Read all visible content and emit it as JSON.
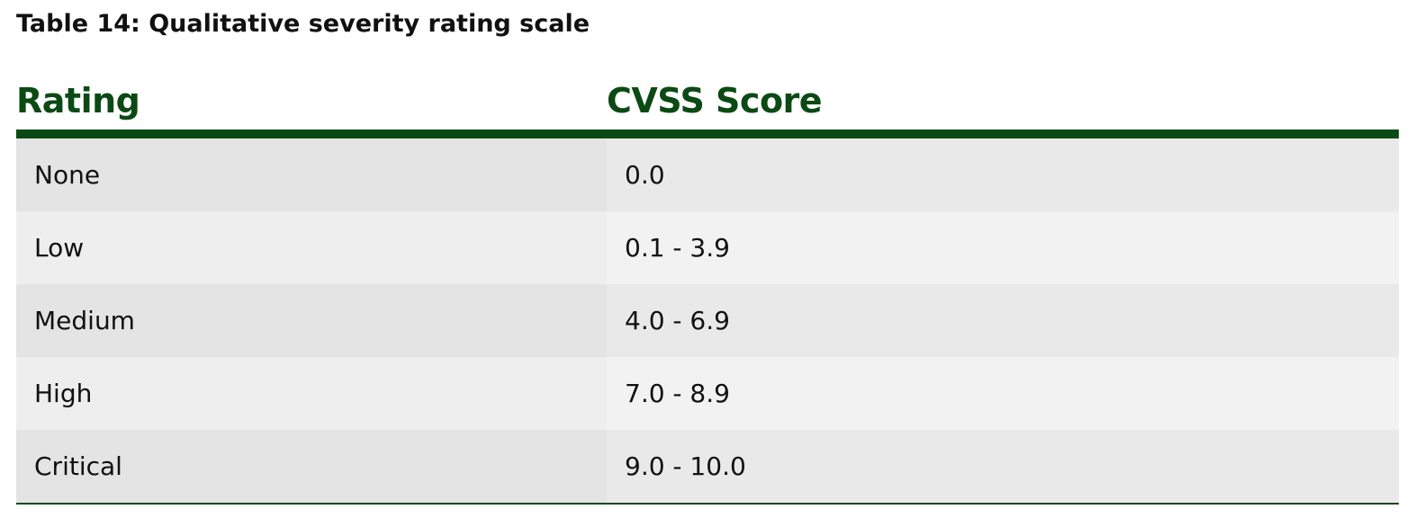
{
  "caption": "Table 14: Qualitative severity rating scale",
  "table": {
    "headers": {
      "rating": "Rating",
      "score": "CVSS Score"
    },
    "rows": [
      {
        "rating": "None",
        "score": "0.0"
      },
      {
        "rating": "Low",
        "score": "0.1 - 3.9"
      },
      {
        "rating": "Medium",
        "score": "4.0 - 6.9"
      },
      {
        "rating": "High",
        "score": "7.0 - 8.9"
      },
      {
        "rating": "Critical",
        "score": "9.0 - 10.0"
      }
    ]
  },
  "colors": {
    "header_green": "#0b4a14",
    "row_dark": "#e4e4e4",
    "row_light": "#eeeeee"
  }
}
